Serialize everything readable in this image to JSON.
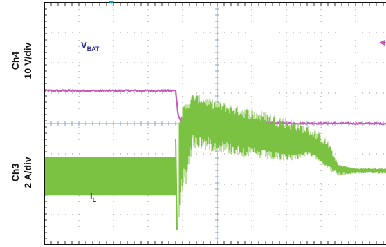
{
  "chart_data": {
    "type": "line",
    "title": "",
    "x_divisions": 10,
    "y_divisions": 8,
    "grid": true,
    "axis_labels": {
      "ch4": {
        "channel": "Ch4",
        "scale": "10 V/div"
      },
      "ch3": {
        "channel": "Ch3",
        "scale": "2 A/div"
      }
    },
    "series": [
      {
        "name": "VBAT",
        "label_main": "V",
        "label_sub": "BAT",
        "channel": "Ch4",
        "color": "#c55bbf",
        "x_div": [
          0,
          3.8,
          3.87,
          3.93,
          4.0,
          4.5,
          10
        ],
        "y_div": [
          1.08,
          1.08,
          0.3,
          0.12,
          0.07,
          0.02,
          0.0
        ]
      },
      {
        "name": "IL",
        "label_main": "I",
        "label_sub": "L",
        "channel": "Ch3",
        "color": "#7cc242",
        "regions": [
          {
            "kind": "band",
            "x_start": 0,
            "x_end": 3.8,
            "y_low": -2.37,
            "y_high": -1.1
          },
          {
            "kind": "edge",
            "x": 3.8,
            "y_low": -3.5,
            "y_high": -0.5
          },
          {
            "kind": "ripple_envelope",
            "x_start": 3.9,
            "x_end": 9.85,
            "center_x_div": [
              3.9,
              4.3,
              5.0,
              5.8,
              6.8,
              7.3,
              7.6,
              7.9,
              8.2,
              8.5,
              9.0,
              9.85
            ],
            "center_y_div": [
              -0.45,
              0.35,
              0.05,
              -0.3,
              -0.65,
              -0.7,
              -0.75,
              -0.9,
              -1.15,
              -1.45,
              -1.55,
              -1.55
            ],
            "top_y_div": [
              0.4,
              1.0,
              0.75,
              0.55,
              0.3,
              0.1,
              -0.05,
              -0.25,
              -0.55,
              -1.35,
              -1.47,
              -1.47
            ],
            "bottom_y_div": [
              -3.3,
              -0.85,
              -0.95,
              -1.1,
              -1.25,
              -1.2,
              -1.05,
              -1.2,
              -1.5,
              -1.75,
              -1.65,
              -1.65
            ]
          }
        ]
      }
    ]
  },
  "markers": {
    "trigger_color": "#00a0c6",
    "ch4_ref_color": "#c55bbf"
  }
}
